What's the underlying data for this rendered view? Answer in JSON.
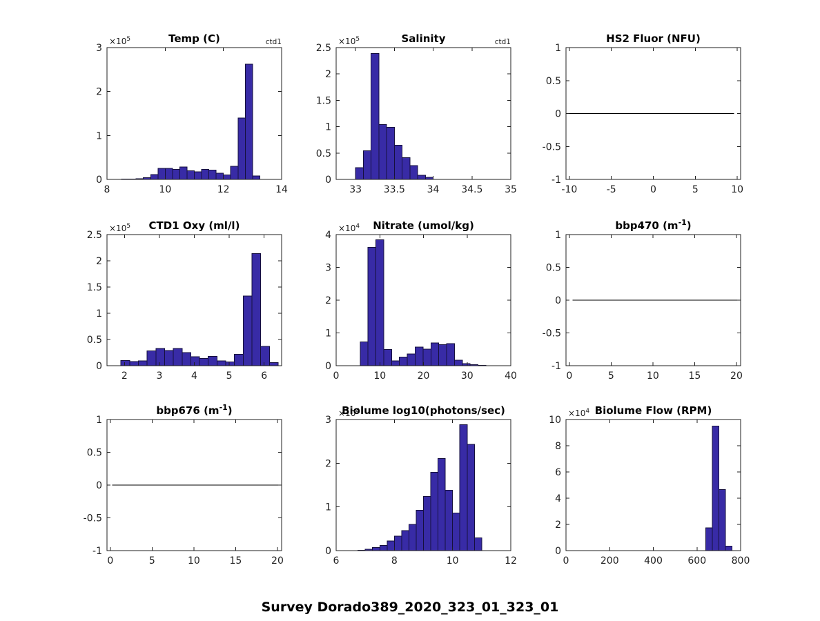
{
  "figure": {
    "suptitle": "Survey Dorado389_2020_323_01_323_01",
    "background": "#ffffff",
    "bar_fill": "#382ba6",
    "bar_edge": "#16103d",
    "axis_color": "#1f1f1f",
    "text_color": "#1f1f1f",
    "title_color": "#000000"
  },
  "chart_data": [
    {
      "name": "temp",
      "type": "bar",
      "title_pre": "Temp (C)",
      "title_sup": "",
      "title_post": "",
      "corner_label": "ctd1",
      "exp_base": "×10",
      "exp_sup": "5",
      "xlim": [
        8,
        14
      ],
      "ylim": [
        0,
        3
      ],
      "xtick_vals": [
        8,
        10,
        12,
        14
      ],
      "xtick_labels": [
        "8",
        "10",
        "12",
        "14"
      ],
      "ytick_vals": [
        0,
        1,
        2,
        3
      ],
      "ytick_labels": [
        "0",
        "1",
        "2",
        "3"
      ],
      "bin_start": 8.5,
      "bin_width": 0.25,
      "values": [
        0.005,
        0.008,
        0.012,
        0.04,
        0.11,
        0.25,
        0.25,
        0.23,
        0.28,
        0.2,
        0.17,
        0.23,
        0.21,
        0.14,
        0.1,
        0.3,
        1.4,
        2.62,
        0.08
      ]
    },
    {
      "name": "salinity",
      "type": "bar",
      "title_pre": "Salinity",
      "title_sup": "",
      "title_post": "",
      "corner_label": "ctd1",
      "exp_base": "×10",
      "exp_sup": "5",
      "xlim": [
        32.75,
        35
      ],
      "ylim": [
        0,
        2.5
      ],
      "xtick_vals": [
        33,
        33.5,
        34,
        34.5,
        35
      ],
      "xtick_labels": [
        "33",
        "33.5",
        "34",
        "34.5",
        "35"
      ],
      "ytick_vals": [
        0,
        0.5,
        1,
        1.5,
        2,
        2.5
      ],
      "ytick_labels": [
        "0",
        "0.5",
        "1",
        "1.5",
        "2",
        "2.5"
      ],
      "bin_start": 33.0,
      "bin_width": 0.1,
      "values": [
        0.22,
        0.54,
        2.39,
        1.04,
        0.99,
        0.65,
        0.41,
        0.26,
        0.08,
        0.04
      ]
    },
    {
      "name": "hs2-fluor",
      "type": "line",
      "title_pre": "HS2 Fluor (NFU)",
      "title_sup": "",
      "title_post": "",
      "corner_label": "",
      "exp_base": "",
      "exp_sup": "",
      "xlim": [
        -10.4,
        10.4
      ],
      "ylim": [
        -1,
        1
      ],
      "xtick_vals": [
        -10,
        -5,
        0,
        5,
        10
      ],
      "xtick_labels": [
        "-10",
        "-5",
        "0",
        "5",
        "10"
      ],
      "ytick_vals": [
        -1,
        -0.5,
        0,
        0.5,
        1
      ],
      "ytick_labels": [
        "-1",
        "-0.5",
        "0",
        "0.5",
        "1"
      ],
      "line": {
        "x0": -10,
        "x1": 9.6,
        "y": 0
      }
    },
    {
      "name": "ctd1-oxy",
      "type": "bar",
      "title_pre": "CTD1 Oxy (ml/l)",
      "title_sup": "",
      "title_post": "",
      "corner_label": "",
      "exp_base": "×10",
      "exp_sup": "5",
      "xlim": [
        1.5,
        6.5
      ],
      "ylim": [
        0,
        2.5
      ],
      "xtick_vals": [
        2,
        3,
        4,
        5,
        6
      ],
      "xtick_labels": [
        "2",
        "3",
        "4",
        "5",
        "6"
      ],
      "ytick_vals": [
        0,
        0.5,
        1,
        1.5,
        2,
        2.5
      ],
      "ytick_labels": [
        "0",
        "0.5",
        "1",
        "1.5",
        "2",
        "2.5"
      ],
      "bin_start": 1.9,
      "bin_width": 0.25,
      "values": [
        0.1,
        0.08,
        0.09,
        0.28,
        0.33,
        0.29,
        0.33,
        0.25,
        0.17,
        0.14,
        0.18,
        0.09,
        0.07,
        0.22,
        1.33,
        2.14,
        0.37,
        0.06
      ]
    },
    {
      "name": "nitrate",
      "type": "bar",
      "title_pre": "Nitrate (umol/kg)",
      "title_sup": "",
      "title_post": "",
      "corner_label": "",
      "exp_base": "×10",
      "exp_sup": "4",
      "xlim": [
        0,
        40
      ],
      "ylim": [
        0,
        4
      ],
      "xtick_vals": [
        0,
        10,
        20,
        30,
        40
      ],
      "xtick_labels": [
        "0",
        "10",
        "20",
        "30",
        "40"
      ],
      "ytick_vals": [
        0,
        1,
        2,
        3,
        4
      ],
      "ytick_labels": [
        "0",
        "1",
        "2",
        "3",
        "4"
      ],
      "bin_start": 5.5,
      "bin_width": 1.8,
      "values": [
        0.73,
        3.61,
        3.84,
        0.5,
        0.15,
        0.26,
        0.36,
        0.57,
        0.51,
        0.69,
        0.64,
        0.67,
        0.17,
        0.06,
        0.03,
        0.01
      ]
    },
    {
      "name": "bbp470",
      "type": "line",
      "title_pre": "bbp470 (m",
      "title_sup": "-1",
      "title_post": ")",
      "corner_label": "",
      "exp_base": "",
      "exp_sup": "",
      "xlim": [
        -0.4,
        20.5
      ],
      "ylim": [
        -1,
        1
      ],
      "xtick_vals": [
        0,
        5,
        10,
        15,
        20
      ],
      "xtick_labels": [
        "0",
        "5",
        "10",
        "15",
        "20"
      ],
      "ytick_vals": [
        -1,
        -0.5,
        0,
        0.5,
        1
      ],
      "ytick_labels": [
        "-1",
        "-0.5",
        "0",
        "0.5",
        "1"
      ],
      "line": {
        "x0": 0.4,
        "x1": 20.4,
        "y": 0
      }
    },
    {
      "name": "bbp676",
      "type": "line",
      "title_pre": "bbp676 (m",
      "title_sup": "-1",
      "title_post": ")",
      "corner_label": "",
      "exp_base": "",
      "exp_sup": "",
      "xlim": [
        -0.4,
        20.5
      ],
      "ylim": [
        -1,
        1
      ],
      "xtick_vals": [
        0,
        5,
        10,
        15,
        20
      ],
      "xtick_labels": [
        "0",
        "5",
        "10",
        "15",
        "20"
      ],
      "ytick_vals": [
        -1,
        -0.5,
        0,
        0.5,
        1
      ],
      "ytick_labels": [
        "-1",
        "-0.5",
        "0",
        "0.5",
        "1"
      ],
      "line": {
        "x0": 0.2,
        "x1": 20.4,
        "y": 0
      }
    },
    {
      "name": "biolume",
      "type": "bar",
      "title_pre": "Biolume log10(photons/sec)",
      "title_sup": "",
      "title_post": "",
      "corner_label": "",
      "exp_base": "×10",
      "exp_sup": "4",
      "xlim": [
        6,
        12
      ],
      "ylim": [
        0,
        3
      ],
      "xtick_vals": [
        6,
        8,
        10,
        12
      ],
      "xtick_labels": [
        "6",
        "8",
        "10",
        "12"
      ],
      "ytick_vals": [
        0,
        1,
        2,
        3
      ],
      "ytick_labels": [
        "0",
        "1",
        "2",
        "3"
      ],
      "bin_start": 6.75,
      "bin_width": 0.25,
      "values": [
        0.01,
        0.03,
        0.07,
        0.12,
        0.22,
        0.33,
        0.46,
        0.6,
        0.92,
        1.24,
        1.79,
        2.11,
        1.38,
        0.86,
        2.88,
        2.43,
        0.29
      ]
    },
    {
      "name": "biolume-flow",
      "type": "bar",
      "title_pre": "Biolume Flow (RPM)",
      "title_sup": "",
      "title_post": "",
      "corner_label": "",
      "exp_base": "×10",
      "exp_sup": "4",
      "xlim": [
        0,
        800
      ],
      "ylim": [
        0,
        10
      ],
      "xtick_vals": [
        0,
        200,
        400,
        600,
        800
      ],
      "xtick_labels": [
        "0",
        "200",
        "400",
        "600",
        "800"
      ],
      "ytick_vals": [
        0,
        2,
        4,
        6,
        8,
        10
      ],
      "ytick_labels": [
        "0",
        "2",
        "4",
        "6",
        "8",
        "10"
      ],
      "bin_start": 640,
      "bin_width": 30,
      "values": [
        1.75,
        9.5,
        4.65,
        0.35
      ]
    }
  ]
}
